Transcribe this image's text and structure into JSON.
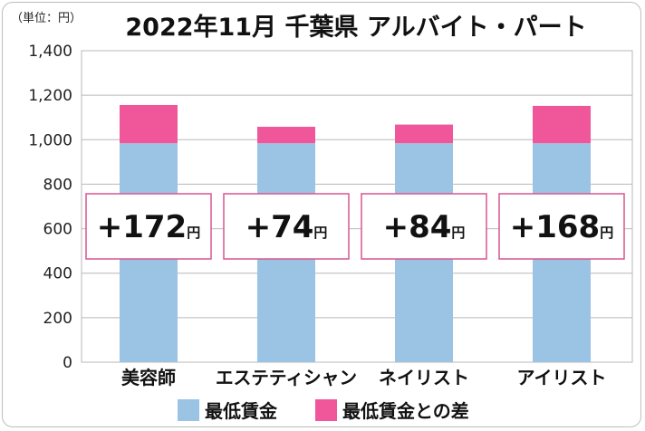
{
  "unit_label": "（単位：円）",
  "chart_data": {
    "type": "bar",
    "stacked": true,
    "title": "2022年11月 千葉県 アルバイト・パート",
    "categories": [
      "美容師",
      "エステティシャン",
      "ネイリスト",
      "アイリスト"
    ],
    "series": [
      {
        "name": "最低賃金",
        "values": [
          984,
          984,
          984,
          984
        ],
        "color": "#9ac3e4"
      },
      {
        "name": "最低賃金との差",
        "values": [
          172,
          74,
          84,
          168
        ],
        "color": "#f0579a"
      }
    ],
    "annotations": [
      "+172円",
      "+74円",
      "+84円",
      "+168円"
    ],
    "ylim": [
      0,
      1400
    ],
    "yticks": [
      0,
      200,
      400,
      600,
      800,
      1000,
      1200,
      1400
    ],
    "ytick_labels": [
      "0",
      "200",
      "400",
      "600",
      "800",
      "1,000",
      "1,200",
      "1,400"
    ],
    "grid": true,
    "legend_position": "bottom",
    "annotation_border_color": "#d9578f"
  }
}
